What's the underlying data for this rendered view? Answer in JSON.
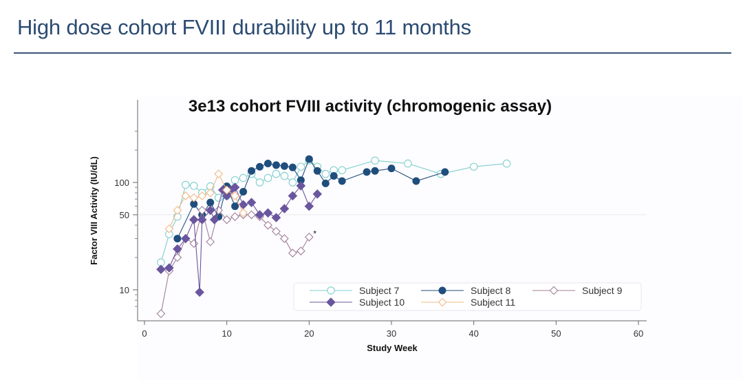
{
  "slide": {
    "title": "High dose cohort FVIII durability up to 11 months"
  },
  "chart_data": {
    "type": "line",
    "title": "3e13 cohort FVIII activity (chromogenic assay)",
    "xlabel": "Study Week",
    "ylabel": "Factor VIII Activity (IU/dL)",
    "xlim": [
      0,
      60
    ],
    "ylim": [
      5.8,
      330
    ],
    "yscale": "log",
    "xticks": [
      0,
      10,
      20,
      30,
      40,
      50,
      60
    ],
    "yticks": [
      10,
      50,
      100
    ],
    "reference_line": 50,
    "legend_position": "bottom-right",
    "annotation": "*",
    "series": [
      {
        "name": "Subject 7",
        "color": "#7dcfcc",
        "marker": "circle-open",
        "x": [
          2,
          3,
          4,
          5,
          6,
          7,
          8,
          9,
          10,
          11,
          12,
          13,
          14,
          15,
          16,
          17,
          18,
          19,
          20,
          21,
          22,
          23,
          24,
          28,
          32,
          36,
          40,
          44
        ],
        "y": [
          18,
          33,
          48,
          95,
          93,
          80,
          92,
          72,
          75,
          105,
          110,
          120,
          100,
          110,
          120,
          115,
          100,
          140,
          160,
          140,
          120,
          130,
          130,
          160,
          150,
          120,
          140,
          150
        ]
      },
      {
        "name": "Subject 8",
        "color": "#1f4e7d",
        "marker": "circle-filled",
        "x": [
          4,
          6,
          7,
          8,
          9,
          10,
          11,
          12,
          13,
          14,
          15,
          16,
          17,
          18,
          19,
          20,
          21,
          22,
          23,
          24,
          27,
          28,
          30,
          33,
          36.5
        ],
        "y": [
          30,
          63,
          50,
          65,
          48,
          92,
          60,
          82,
          128,
          140,
          150,
          145,
          142,
          138,
          105,
          165,
          128,
          98,
          115,
          103,
          125,
          128,
          135,
          103,
          125
        ]
      },
      {
        "name": "Subject 9",
        "color": "#a07f97",
        "marker": "diamond-open",
        "x": [
          2,
          3,
          4,
          5,
          6,
          7,
          8,
          9,
          10,
          11,
          12,
          13,
          14,
          15,
          16,
          17,
          18,
          19,
          20
        ],
        "y": [
          6,
          15,
          20,
          30,
          27,
          55,
          28,
          55,
          45,
          48,
          50,
          50,
          48,
          40,
          35,
          30,
          22,
          23,
          31
        ]
      },
      {
        "name": "Subject 10",
        "color": "#6a569e",
        "marker": "diamond-filled",
        "x": [
          2,
          3,
          4,
          5,
          6,
          6.7,
          7,
          8,
          8.5,
          9.5,
          10,
          10.5,
          11,
          12,
          13,
          14,
          15,
          16,
          17,
          18,
          19,
          20,
          21
        ],
        "y": [
          15.5,
          16,
          24,
          30,
          45,
          9.5,
          45,
          55,
          45,
          85,
          75,
          85,
          90,
          62,
          65,
          50,
          52,
          47,
          57,
          75,
          93,
          60,
          78
        ]
      },
      {
        "name": "Subject 11",
        "color": "#f0b887",
        "marker": "diamond-open",
        "x": [
          3,
          4,
          5,
          6,
          7,
          8,
          9,
          10,
          11,
          12
        ],
        "y": [
          37,
          55,
          75,
          72,
          75,
          80,
          120,
          85,
          75,
          52
        ]
      }
    ]
  }
}
